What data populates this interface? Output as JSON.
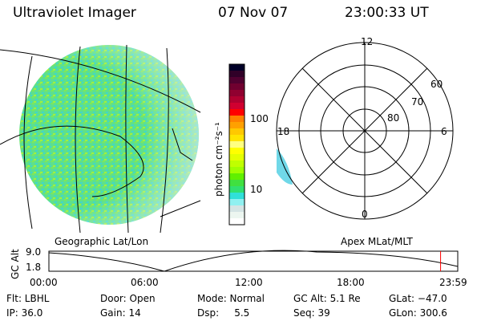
{
  "header": {
    "instrument": "Ultraviolet Imager",
    "date": "07 Nov 07",
    "time": "23:00:33 UT"
  },
  "colorbar": {
    "label": "photon cm⁻²s⁻¹",
    "ticks": [
      "100",
      "10"
    ],
    "colors": [
      "#000028",
      "#300028",
      "#500030",
      "#700030",
      "#900030",
      "#b00030",
      "#d00030",
      "#ff0000",
      "#ff8000",
      "#ffa000",
      "#ffc800",
      "#ffe400",
      "#ffff80",
      "#ffff00",
      "#e4ff00",
      "#c0ff00",
      "#a0ff00",
      "#60f000",
      "#40e040",
      "#30e070",
      "#30e0d8",
      "#90f0f0",
      "#d4e4e4",
      "#ecf6f0",
      "#ffffff"
    ]
  },
  "polar": {
    "labels": {
      "top": "12",
      "bottom": "0",
      "left": "18",
      "right": "6"
    },
    "lat_labels": [
      "60",
      "70",
      "80"
    ]
  },
  "timeline": {
    "left_label": "Geographic Lat/Lon",
    "right_label": "Apex MLat/MLT",
    "y_axis": "GC Alt",
    "y_ticks": [
      "9.0",
      "1.8"
    ],
    "x_ticks": [
      "00:00",
      "06:00",
      "12:00",
      "18:00",
      "23:59"
    ],
    "current_time_fraction": 0.958,
    "marker_color": "#ff0000"
  },
  "info": {
    "flt": "Flt: LBHL",
    "ip": "IP: 36.0",
    "door": "Door: Open",
    "gain": "Gain: 14",
    "mode": "Mode: Normal",
    "dsp": "Dsp:     5.5",
    "gc_alt": "GC Alt: 5.1 Re",
    "seq": "Seq: 39",
    "glat": "GLat: −47.0",
    "glon": "GLon: 300.6"
  }
}
